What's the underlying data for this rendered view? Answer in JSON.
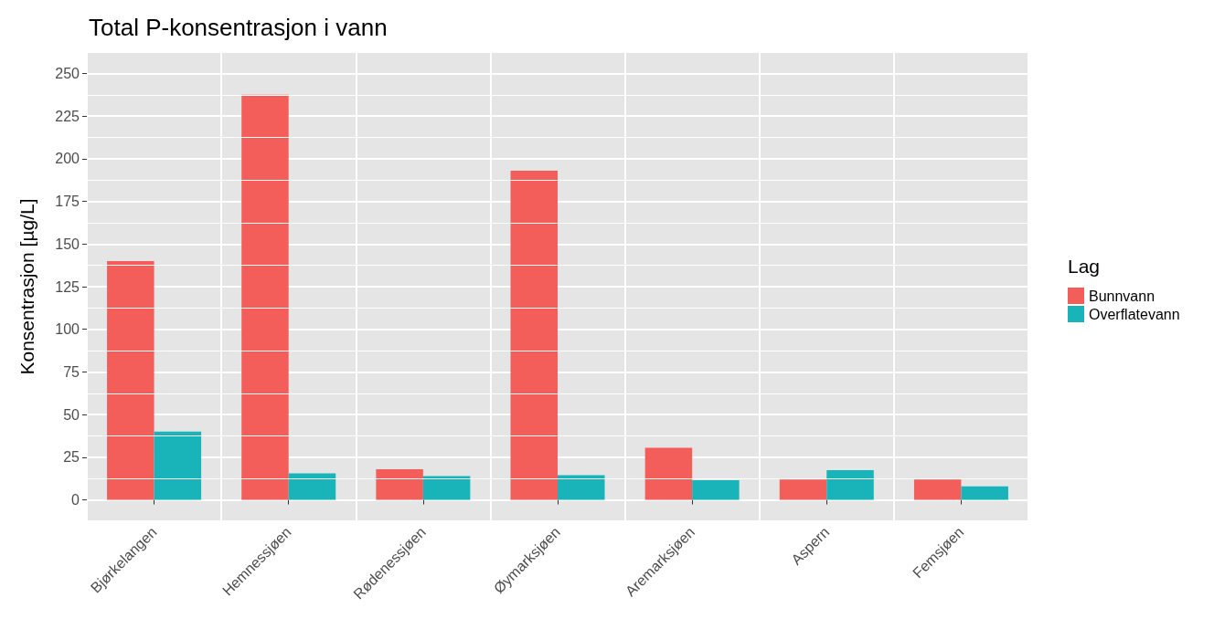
{
  "chart_data": {
    "type": "bar",
    "title": "Total P-konsentrasjon i vann",
    "ylabel": "Konsentrasjon [µg/L]",
    "legend_title": "Lag",
    "categories": [
      "Bjørkelangen",
      "Hemnessjøen",
      "Rødenessjøen",
      "Øymarksjøen",
      "Aremarksjøen",
      "Aspern",
      "Femsjøen"
    ],
    "series": [
      {
        "name": "Bunnvann",
        "color": "#f35e5a",
        "values": [
          140,
          237.5,
          18,
          193,
          30.5,
          12,
          12
        ]
      },
      {
        "name": "Overflatevann",
        "color": "#19b4b9",
        "values": [
          40,
          15.5,
          14,
          14.5,
          11.5,
          17.5,
          8
        ]
      }
    ],
    "ylim": [
      -12,
      262
    ],
    "yticks": [
      0,
      25,
      50,
      75,
      100,
      125,
      150,
      175,
      200,
      225,
      250
    ],
    "grid": true,
    "legend": "right"
  }
}
